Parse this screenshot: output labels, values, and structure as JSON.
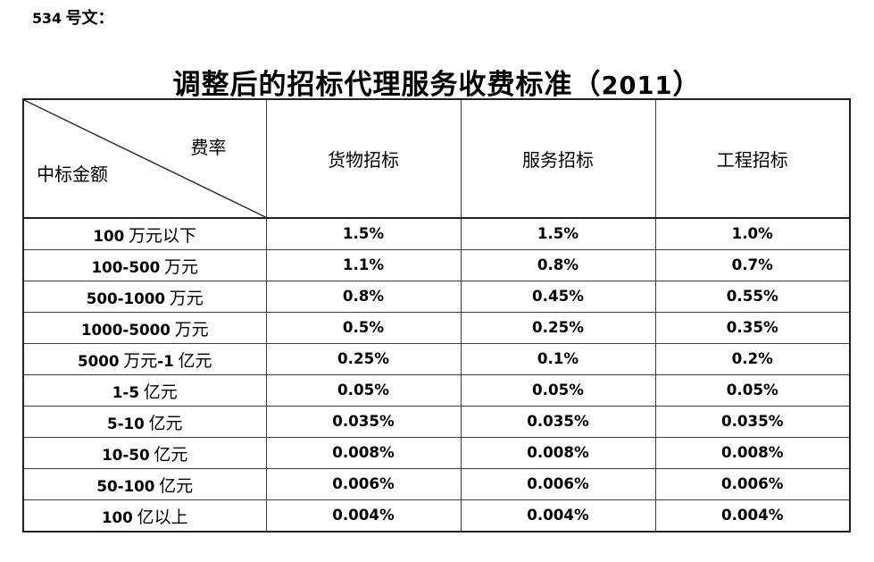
{
  "doc": {
    "ref": "534 号文：",
    "title": "调整后的招标代理服务收费标准（2011）"
  },
  "table": {
    "corner": {
      "top_right": "费率",
      "bottom_left": "中标金额"
    },
    "columns": [
      "货物招标",
      "服务招标",
      "工程招标"
    ],
    "rows": [
      {
        "amount": "100 万元以下",
        "goods": "1.5%",
        "service": "1.5%",
        "engineering": "1.0%"
      },
      {
        "amount": "100-500 万元",
        "goods": "1.1%",
        "service": "0.8%",
        "engineering": "0.7%"
      },
      {
        "amount": "500-1000 万元",
        "goods": "0.8%",
        "service": "0.45%",
        "engineering": "0.55%"
      },
      {
        "amount": "1000-5000 万元",
        "goods": "0.5%",
        "service": "0.25%",
        "engineering": "0.35%"
      },
      {
        "amount": "5000 万元-1 亿元",
        "goods": "0.25%",
        "service": "0.1%",
        "engineering": "0.2%"
      },
      {
        "amount": "1-5 亿元",
        "goods": "0.05%",
        "service": "0.05%",
        "engineering": "0.05%"
      },
      {
        "amount": "5-10 亿元",
        "goods": "0.035%",
        "service": "0.035%",
        "engineering": "0.035%"
      },
      {
        "amount": "10-50 亿元",
        "goods": "0.008%",
        "service": "0.008%",
        "engineering": "0.008%"
      },
      {
        "amount": "50-100 亿元",
        "goods": "0.006%",
        "service": "0.006%",
        "engineering": "0.006%"
      },
      {
        "amount": "100 亿以上",
        "goods": "0.004%",
        "service": "0.004%",
        "engineering": "0.004%"
      }
    ]
  },
  "colors": {
    "text": "#000000",
    "border_inner": "#3d3d3d",
    "border_outer": "#222222",
    "background": "#ffffff"
  }
}
